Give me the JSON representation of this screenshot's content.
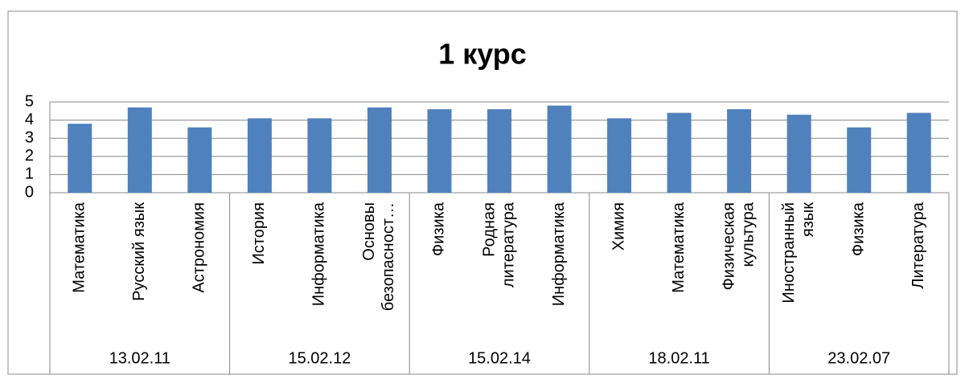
{
  "chart_data": {
    "type": "bar",
    "title": "1 курс",
    "color": "#4f81bd",
    "ylim": [
      0,
      5
    ],
    "yticks": [
      0,
      1,
      2,
      3,
      4,
      5
    ],
    "grid": true,
    "groups": [
      {
        "name": "13.02.11",
        "categories": [
          [
            "Математика"
          ],
          [
            "Русский язык"
          ],
          [
            "Астрономия"
          ]
        ],
        "values": [
          3.8,
          4.7,
          3.6
        ]
      },
      {
        "name": "15.02.12",
        "categories": [
          [
            "История"
          ],
          [
            "Информатика"
          ],
          [
            "Основы",
            "безопасност…"
          ]
        ],
        "values": [
          4.1,
          4.1,
          4.7
        ]
      },
      {
        "name": "15.02.14",
        "categories": [
          [
            "Физика"
          ],
          [
            "Родная",
            "литература"
          ],
          [
            "Информатика"
          ]
        ],
        "values": [
          4.6,
          4.6,
          4.8
        ]
      },
      {
        "name": "18.02.11",
        "categories": [
          [
            "Химия"
          ],
          [
            "Математика"
          ],
          [
            "Физическая",
            "культура"
          ]
        ],
        "values": [
          4.1,
          4.4,
          4.6
        ]
      },
      {
        "name": "23.02.07",
        "categories": [
          [
            "Иностранный",
            "язык"
          ],
          [
            "Физика"
          ],
          [
            "Литература"
          ]
        ],
        "values": [
          4.3,
          3.6,
          4.4
        ]
      }
    ]
  }
}
